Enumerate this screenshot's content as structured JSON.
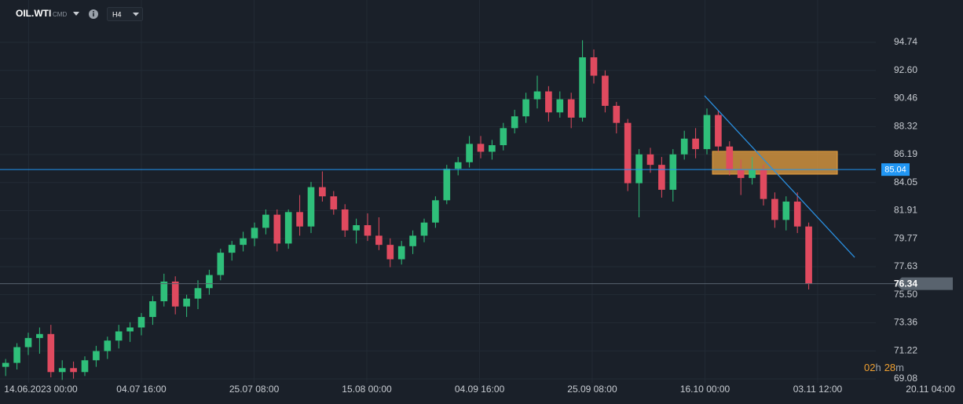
{
  "header": {
    "symbol": "OIL.WTI",
    "market": "CMD",
    "timeframe": "H4"
  },
  "chart_data": {
    "type": "candlestick",
    "up_color": "#2fbf7a",
    "down_color": "#e04a5f",
    "ohlc": [
      [
        70.0,
        70.6,
        69.3,
        70.3
      ],
      [
        70.3,
        71.8,
        69.8,
        71.5
      ],
      [
        71.5,
        72.6,
        70.9,
        72.2
      ],
      [
        72.2,
        73.0,
        71.0,
        72.5
      ],
      [
        72.5,
        73.2,
        69.2,
        69.6
      ],
      [
        69.6,
        70.5,
        69.0,
        69.9
      ],
      [
        69.9,
        70.4,
        69.1,
        69.6
      ],
      [
        69.6,
        70.8,
        69.3,
        70.5
      ],
      [
        70.5,
        71.6,
        70.0,
        71.2
      ],
      [
        71.2,
        72.3,
        70.6,
        72.0
      ],
      [
        72.0,
        73.2,
        71.4,
        72.7
      ],
      [
        72.7,
        73.4,
        71.9,
        73.0
      ],
      [
        73.0,
        74.1,
        72.4,
        73.8
      ],
      [
        73.8,
        75.4,
        73.2,
        75.0
      ],
      [
        75.0,
        77.1,
        74.6,
        76.5
      ],
      [
        76.5,
        76.9,
        74.0,
        74.6
      ],
      [
        74.6,
        75.5,
        73.8,
        75.2
      ],
      [
        75.2,
        76.6,
        74.4,
        76.0
      ],
      [
        76.0,
        77.4,
        75.5,
        77.0
      ],
      [
        77.0,
        79.0,
        76.6,
        78.7
      ],
      [
        78.7,
        79.6,
        78.1,
        79.3
      ],
      [
        79.3,
        80.3,
        78.8,
        79.8
      ],
      [
        79.8,
        81.0,
        79.2,
        80.6
      ],
      [
        80.6,
        82.0,
        80.1,
        81.6
      ],
      [
        81.6,
        82.0,
        78.8,
        79.4
      ],
      [
        79.4,
        82.0,
        79.0,
        81.8
      ],
      [
        81.8,
        83.1,
        80.0,
        80.7
      ],
      [
        80.7,
        84.1,
        80.2,
        83.7
      ],
      [
        83.7,
        84.9,
        82.6,
        83.0
      ],
      [
        83.0,
        83.4,
        81.6,
        82.0
      ],
      [
        82.0,
        82.4,
        79.9,
        80.4
      ],
      [
        80.4,
        81.3,
        79.4,
        80.8
      ],
      [
        80.8,
        81.7,
        79.6,
        80.0
      ],
      [
        80.0,
        81.4,
        78.9,
        79.3
      ],
      [
        79.3,
        79.8,
        77.6,
        78.2
      ],
      [
        78.2,
        79.6,
        77.8,
        79.2
      ],
      [
        79.2,
        80.4,
        78.6,
        80.0
      ],
      [
        80.0,
        81.3,
        79.5,
        81.0
      ],
      [
        81.0,
        83.0,
        80.6,
        82.7
      ],
      [
        82.7,
        85.4,
        82.4,
        85.1
      ],
      [
        85.1,
        86.0,
        84.6,
        85.6
      ],
      [
        85.6,
        87.6,
        85.2,
        87.0
      ],
      [
        87.0,
        87.6,
        85.9,
        86.4
      ],
      [
        86.4,
        87.3,
        85.8,
        86.9
      ],
      [
        86.9,
        88.6,
        86.5,
        88.2
      ],
      [
        88.2,
        89.6,
        87.8,
        89.1
      ],
      [
        89.1,
        90.9,
        88.6,
        90.4
      ],
      [
        90.4,
        92.2,
        89.7,
        91.0
      ],
      [
        91.0,
        91.4,
        88.7,
        89.4
      ],
      [
        89.4,
        91.0,
        89.0,
        90.4
      ],
      [
        90.4,
        90.9,
        88.2,
        89.0
      ],
      [
        89.0,
        94.9,
        88.7,
        93.6
      ],
      [
        93.6,
        94.2,
        91.6,
        92.2
      ],
      [
        92.2,
        92.6,
        89.4,
        89.9
      ],
      [
        89.9,
        90.2,
        87.8,
        88.6
      ],
      [
        88.6,
        88.9,
        83.4,
        84.0
      ],
      [
        84.0,
        86.6,
        81.4,
        86.2
      ],
      [
        86.2,
        86.7,
        84.8,
        85.4
      ],
      [
        85.4,
        86.0,
        82.9,
        83.5
      ],
      [
        83.5,
        86.6,
        82.6,
        86.2
      ],
      [
        86.2,
        88.0,
        85.8,
        87.4
      ],
      [
        87.4,
        88.2,
        85.9,
        86.6
      ],
      [
        86.6,
        89.7,
        86.2,
        89.2
      ],
      [
        89.2,
        89.5,
        86.4,
        86.8
      ],
      [
        86.8,
        87.2,
        84.6,
        85.0
      ],
      [
        85.0,
        85.8,
        83.1,
        84.4
      ],
      [
        84.4,
        86.0,
        83.9,
        85.0
      ],
      [
        85.0,
        85.4,
        82.3,
        82.8
      ],
      [
        82.8,
        83.3,
        80.6,
        81.2
      ],
      [
        81.2,
        83.0,
        80.4,
        82.6
      ],
      [
        82.6,
        83.3,
        80.2,
        80.7
      ],
      [
        80.7,
        81.0,
        75.9,
        76.34
      ]
    ],
    "ylim": [
      68.78,
      97.97
    ],
    "yticks": [
      94.74,
      {
        "value": 92.6,
        "label": "92.60"
      },
      90.46,
      88.32,
      86.19,
      84.05,
      81.91,
      79.77,
      77.63,
      {
        "value": 75.5,
        "label": "75.50"
      },
      73.36,
      71.22,
      69.08
    ],
    "xlim": [
      0,
      85.14
    ],
    "xticks": [
      {
        "value": 2.53,
        "label": "14.06.2023  00:00"
      },
      {
        "value": 12.5,
        "label": "04.07  16:00"
      },
      {
        "value": 22.47,
        "label": "25.07  08:00"
      },
      {
        "value": 32.43,
        "label": "15.08  00:00"
      },
      {
        "value": 42.4,
        "label": "04.09  16:00"
      },
      {
        "value": 52.36,
        "label": "25.09  08:00"
      },
      {
        "value": 62.33,
        "label": "16.10  00:00"
      },
      {
        "value": 72.29,
        "label": "03.11  12:00"
      },
      {
        "value": 82.26,
        "label": "20.11  04:00"
      }
    ],
    "grid": true,
    "hline": {
      "value": 85.04,
      "color": "#2196f3"
    },
    "last_price_color": "#59636e",
    "trendline": {
      "x": [
        62.29,
        75.56
      ],
      "y": [
        90.67,
        78.35
      ],
      "color": "#2a8fe0"
    },
    "zone": {
      "x": [
        62.99,
        74.03
      ],
      "y": [
        84.69,
        86.43
      ],
      "color": "#e8a040"
    }
  },
  "countdown": [
    "02",
    "h",
    "28",
    "m"
  ]
}
